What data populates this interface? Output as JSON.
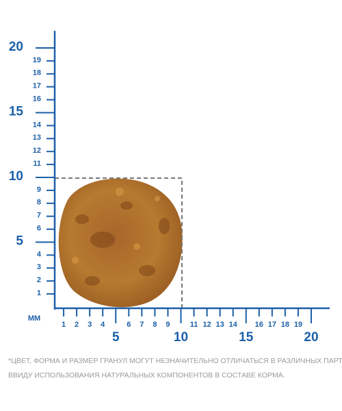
{
  "y_axis": {
    "ticks": [
      1,
      2,
      3,
      4,
      5,
      6,
      7,
      8,
      9,
      10,
      11,
      12,
      13,
      14,
      15,
      16,
      17,
      18,
      19,
      20
    ]
  },
  "x_axis": {
    "ticks": [
      1,
      2,
      3,
      4,
      5,
      6,
      7,
      8,
      9,
      10,
      11,
      12,
      13,
      14,
      15,
      16,
      17,
      18,
      19,
      20
    ]
  },
  "unit": "ММ",
  "note": [
    "*ЦВЕТ, ФОРМА И РАЗМЕР ГРАНУЛ МОГУТ НЕЗНАЧИТЕЛЬНО ОТЛИЧАТЬСЯ В РАЗЛИЧНЫХ ПАРТИЯХ,",
    "ВВИДУ ИСПОЛЬЗОВАНИЯ НАТУРАЛЬНЫХ КОМПОНЕНТОВ В СОСТАВЕ КОРМА."
  ]
}
